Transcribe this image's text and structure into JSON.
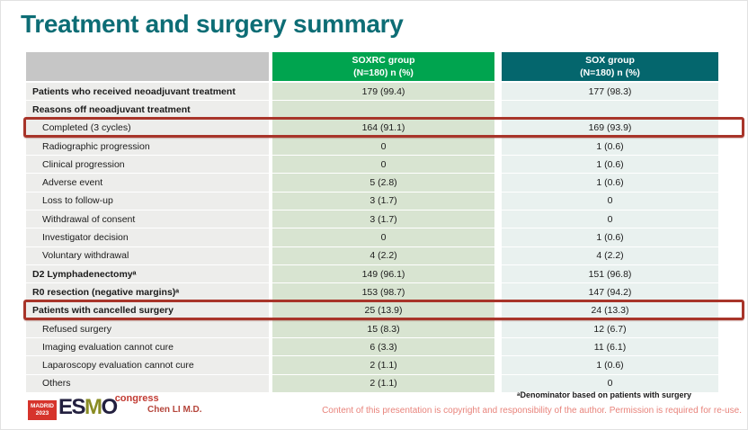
{
  "slide": {
    "title": "Treatment and surgery summary"
  },
  "table": {
    "header": {
      "soxrc": {
        "line1": "SOXRC group",
        "line2": "(N=180) n (%)"
      },
      "sox": {
        "line1": "SOX group",
        "line2": "(N=180) n (%)"
      }
    },
    "rows": [
      {
        "label": "Patients who received neoadjuvant treatment",
        "soxrc": "179 (99.4)",
        "sox": "177 (98.3)",
        "bold": true,
        "indent": false,
        "highlight": false
      },
      {
        "label": "Reasons off neoadjuvant treatment",
        "soxrc": "",
        "sox": "",
        "bold": true,
        "indent": false,
        "highlight": false
      },
      {
        "label": "Completed (3 cycles)",
        "soxrc": "164 (91.1)",
        "sox": "169 (93.9)",
        "bold": false,
        "indent": true,
        "highlight": true
      },
      {
        "label": "Radiographic progression",
        "soxrc": "0",
        "sox": "1 (0.6)",
        "bold": false,
        "indent": true,
        "highlight": false
      },
      {
        "label": "Clinical progression",
        "soxrc": "0",
        "sox": "1 (0.6)",
        "bold": false,
        "indent": true,
        "highlight": false
      },
      {
        "label": "Adverse event",
        "soxrc": "5 (2.8)",
        "sox": "1 (0.6)",
        "bold": false,
        "indent": true,
        "highlight": false
      },
      {
        "label": "Loss to follow-up",
        "soxrc": "3 (1.7)",
        "sox": "0",
        "bold": false,
        "indent": true,
        "highlight": false
      },
      {
        "label": "Withdrawal of consent",
        "soxrc": "3 (1.7)",
        "sox": "0",
        "bold": false,
        "indent": true,
        "highlight": false
      },
      {
        "label": "Investigator decision",
        "soxrc": "0",
        "sox": "1 (0.6)",
        "bold": false,
        "indent": true,
        "highlight": false
      },
      {
        "label": "Voluntary withdrawal",
        "soxrc": "4 (2.2)",
        "sox": "4 (2.2)",
        "bold": false,
        "indent": true,
        "highlight": false
      },
      {
        "label": "D2 Lymphadenectomyᵃ",
        "soxrc": "149 (96.1)",
        "sox": "151 (96.8)",
        "bold": true,
        "indent": false,
        "highlight": false
      },
      {
        "label": "R0 resection (negative margins)ᵃ",
        "soxrc": "153 (98.7)",
        "sox": "147 (94.2)",
        "bold": true,
        "indent": false,
        "highlight": false
      },
      {
        "label": "Patients with cancelled surgery",
        "soxrc": "25 (13.9)",
        "sox": "24 (13.3)",
        "bold": true,
        "indent": false,
        "highlight": true
      },
      {
        "label": "Refused surgery",
        "soxrc": "15 (8.3)",
        "sox": "12 (6.7)",
        "bold": false,
        "indent": true,
        "highlight": false
      },
      {
        "label": "Imaging evaluation cannot cure",
        "soxrc": "6 (3.3)",
        "sox": "11 (6.1)",
        "bold": false,
        "indent": true,
        "highlight": false
      },
      {
        "label": "Laparoscopy evaluation cannot cure",
        "soxrc": "2 (1.1)",
        "sox": "1 (0.6)",
        "bold": false,
        "indent": true,
        "highlight": false
      },
      {
        "label": "Others",
        "soxrc": "2 (1.1)",
        "sox": "0",
        "bold": false,
        "indent": true,
        "highlight": false
      }
    ]
  },
  "footer": {
    "footnote": "ᵃDenominator based on patients with surgery",
    "presenter": "Chen LI M.D.",
    "copyright": "Content of this presentation is copyright and responsibility of the author. Permission is required for re-use.",
    "logo": {
      "city": "MADRID",
      "year": "2023",
      "es": "ES",
      "m": "M",
      "o": "O",
      "congress": "congress"
    }
  },
  "colors": {
    "title_text": "#0d6d75",
    "soxrc_header_bg": "#00a44f",
    "sox_header_bg": "#04666d",
    "label_header_bg": "#c6c6c6",
    "label_cell_bg": "#ededeb",
    "soxrc_cell_bg": "#d8e4d1",
    "sox_cell_bg": "#e9f1ef",
    "highlight_border": "#a8352a",
    "copyright_text": "#e8837b",
    "presenter_text": "#b5463c",
    "logo_red": "#d6342c",
    "logo_navy": "#23203f",
    "logo_olive": "#8a8c24"
  }
}
